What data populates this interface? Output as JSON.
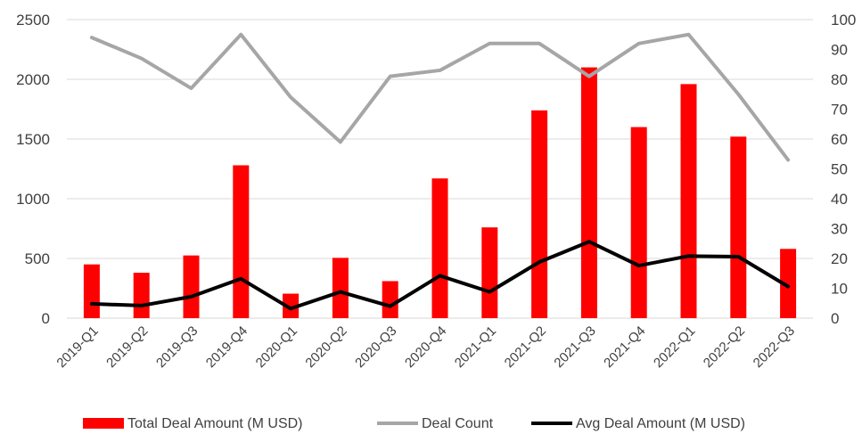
{
  "chart_data": {
    "type": "bar",
    "categories": [
      "2019-Q1",
      "2019-Q2",
      "2019-Q3",
      "2019-Q4",
      "2020-Q1",
      "2020-Q2",
      "2020-Q3",
      "2020-Q4",
      "2021-Q1",
      "2021-Q2",
      "2021-Q3",
      "2021-Q4",
      "2022-Q1",
      "2022-Q2",
      "2022-Q3"
    ],
    "series": [
      {
        "name": "Total Deal Amount (M USD)",
        "type": "bar",
        "axis": "left",
        "color": "#ff0000",
        "values": [
          450,
          380,
          525,
          1280,
          205,
          505,
          310,
          1170,
          760,
          1740,
          2100,
          1600,
          1960,
          1520,
          580
        ]
      },
      {
        "name": "Deal Count",
        "type": "line",
        "axis": "right",
        "color": "#a6a6a6",
        "values": [
          94,
          87,
          77,
          95,
          74,
          59,
          81,
          83,
          92,
          92,
          81,
          92,
          95,
          75,
          53
        ]
      },
      {
        "name": "Avg Deal Amount (M USD)",
        "type": "line",
        "axis": "left",
        "color": "#000000",
        "values": [
          120,
          105,
          180,
          330,
          80,
          220,
          100,
          355,
          220,
          470,
          640,
          440,
          520,
          515,
          265
        ]
      }
    ],
    "y_left": {
      "min": 0,
      "max": 2500,
      "ticks": [
        "0",
        "500",
        "1000",
        "1500",
        "2000",
        "2500"
      ]
    },
    "y_right": {
      "min": 0,
      "max": 100,
      "ticks": [
        "0",
        "10",
        "20",
        "30",
        "40",
        "50",
        "60",
        "70",
        "80",
        "90",
        "100"
      ]
    },
    "grid": true,
    "legend_position": "bottom",
    "title": "",
    "xlabel": "",
    "ylabel": ""
  }
}
